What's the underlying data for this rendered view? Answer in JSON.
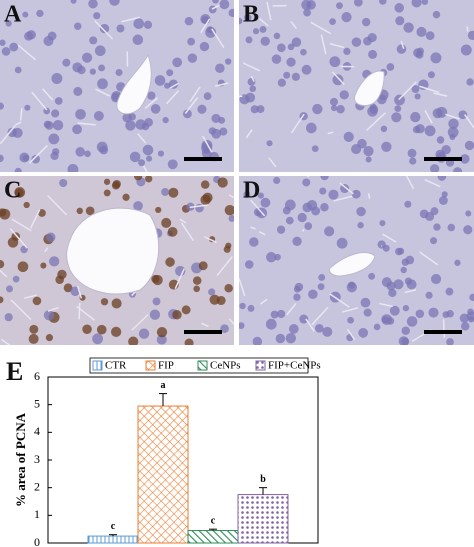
{
  "panels": [
    {
      "label": "A"
    },
    {
      "label": "B"
    },
    {
      "label": "C"
    },
    {
      "label": "D"
    }
  ],
  "chart_data": {
    "type": "bar",
    "panel_label": "E",
    "y_label": "% area of PCNA",
    "ylim": [
      0,
      6
    ],
    "yticks": [
      0,
      1,
      2,
      3,
      4,
      5,
      6
    ],
    "series": [
      {
        "name": "CTR",
        "color": "#5b9bd5",
        "pattern": "vertical",
        "values": [
          0.25
        ],
        "errors": [
          0.05
        ],
        "annotation": "c"
      },
      {
        "name": "FIP",
        "color": "#ed7d31",
        "pattern": "crosshatch",
        "values": [
          4.95
        ],
        "errors": [
          0.45
        ],
        "annotation": "a"
      },
      {
        "name": "CeNPs",
        "color": "#2e8b57",
        "pattern": "diagonal",
        "values": [
          0.45
        ],
        "errors": [
          0.05
        ],
        "annotation": "c"
      },
      {
        "name": "FIP+CeNPs",
        "color": "#8064a2",
        "pattern": "dots",
        "values": [
          1.75
        ],
        "errors": [
          0.25
        ],
        "annotation": "b"
      }
    ]
  }
}
